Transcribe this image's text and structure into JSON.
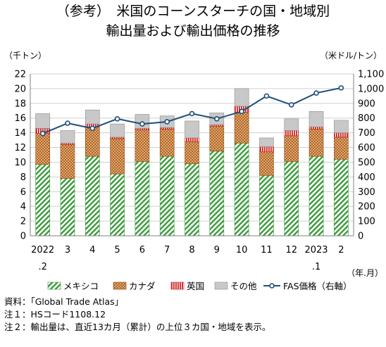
{
  "header": {
    "title_line1": "（参考）　米国のコーンスターチの国・地域別",
    "title_line2": "輸出量および輸出価格の推移"
  },
  "chart_data": {
    "type": "bar",
    "stacked": true,
    "left_unit": "（千トン）",
    "right_unit": "（米ドル/トン）",
    "x_unit": "（年.月）",
    "categories": [
      "2022",
      "3",
      "4",
      "5",
      "6",
      "7",
      "8",
      "9",
      "10",
      "11",
      "12",
      "2023",
      "2"
    ],
    "category_sublabels": [
      ".2",
      "",
      "",
      "",
      "",
      "",
      "",
      "",
      "",
      "",
      "",
      ".1",
      ""
    ],
    "left_axis": {
      "min": 0,
      "max": 22,
      "ticks": [
        "0",
        "2",
        "4",
        "6",
        "8",
        "10",
        "12",
        "14",
        "16",
        "18",
        "20",
        "22"
      ]
    },
    "right_axis": {
      "min": 0,
      "max": 1100,
      "ticks": [
        "0",
        "100",
        "200",
        "300",
        "400",
        "500",
        "600",
        "700",
        "800",
        "900",
        "1,000",
        "1,100"
      ]
    },
    "series": [
      {
        "name": "メキシコ",
        "color": "#3a9a3a",
        "pattern": "diagonal-stripes",
        "values": [
          9.7,
          7.8,
          10.8,
          8.4,
          10.1,
          10.8,
          9.8,
          11.5,
          12.6,
          8.2,
          10.1,
          10.8,
          10.4
        ]
      },
      {
        "name": "カナダ",
        "color": "#b5651d",
        "pattern": "dots",
        "values": [
          4.2,
          4.6,
          4.0,
          4.8,
          4.3,
          3.7,
          3.0,
          3.4,
          4.2,
          3.2,
          3.5,
          3.7,
          3.0
        ]
      },
      {
        "name": "英国",
        "color": "#cc2222",
        "pattern": "vertical-stripes",
        "values": [
          0.7,
          0.2,
          0.4,
          0.2,
          0.2,
          0.2,
          0.5,
          0.2,
          0.8,
          0.7,
          0.7,
          0.3,
          0.6
        ]
      },
      {
        "name": "その他",
        "color": "#c8c8c8",
        "pattern": "solid",
        "values": [
          2.0,
          1.7,
          1.9,
          1.8,
          1.9,
          1.6,
          2.3,
          1.6,
          2.4,
          1.2,
          1.6,
          2.1,
          1.7
        ]
      }
    ],
    "line_series": {
      "name": "FAS価格（右軸）",
      "color": "#1f4e79",
      "axis": "right",
      "values": [
        695,
        765,
        730,
        795,
        760,
        775,
        830,
        795,
        845,
        950,
        890,
        970,
        1005
      ]
    },
    "grid": true,
    "legend_position": "bottom"
  },
  "footnotes": {
    "source": "資料：「Global Trade Atlas」",
    "note1": "注１：HSコード1108.12",
    "note2": "注２：輸出量は、直近13カ月（累計）の上位３カ国・地域を表示。"
  }
}
